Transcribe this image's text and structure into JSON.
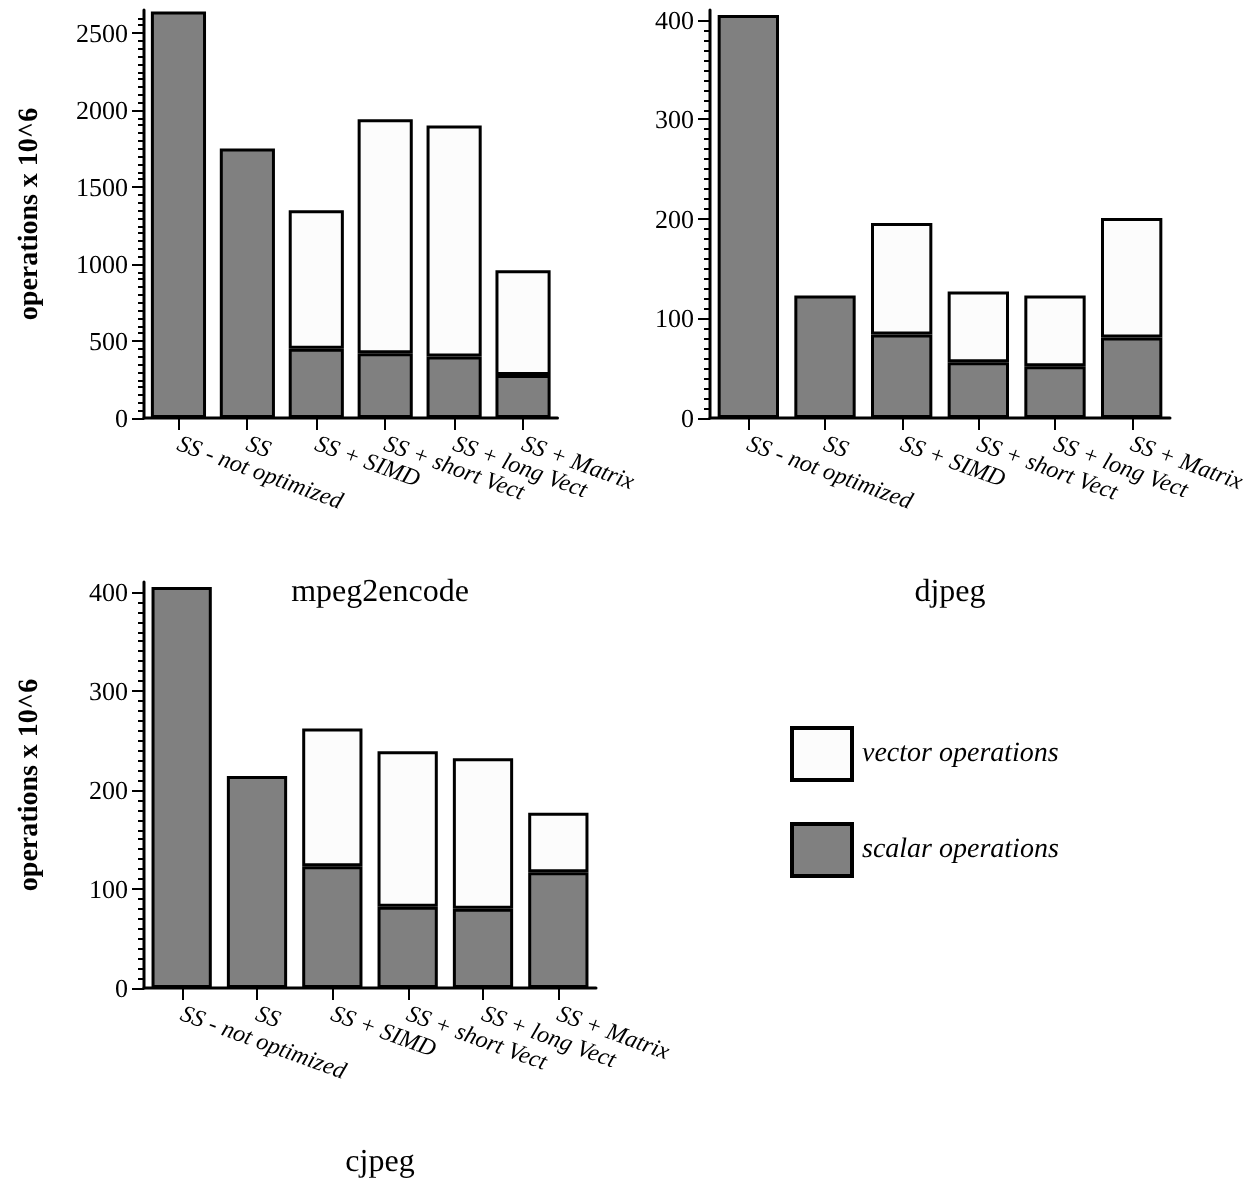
{
  "chart_data": [
    {
      "type": "bar",
      "title": "mpeg2encode",
      "ylabel": "operations x 10^6",
      "stacked": true,
      "legend": false,
      "categories": [
        "SS - not optimized",
        "SS",
        "SS + SIMD",
        "SS + short Vect",
        "SS + long Vect",
        "SS + Matrix"
      ],
      "ylim": [
        0,
        2650
      ],
      "yticks": [
        0,
        500,
        1000,
        1500,
        2000,
        2500
      ],
      "series": [
        {
          "color": "#808080",
          "values": [
            2640,
            1750,
            450,
            420,
            400,
            280
          ]
        },
        {
          "color": "#fcfcfc",
          "values": [
            null,
            null,
            900,
            1520,
            1500,
            680
          ]
        }
      ]
    },
    {
      "type": "bar",
      "title": "djpeg",
      "stacked": true,
      "legend": false,
      "categories": [
        "SS - not optimized",
        "SS",
        "SS + SIMD",
        "SS + short Vect",
        "SS + long Vect",
        "SS + Matrix"
      ],
      "ylim": [
        0,
        410
      ],
      "yticks": [
        0,
        100,
        200,
        300,
        400
      ],
      "series": [
        {
          "color": "#808080",
          "values": [
            405,
            123,
            84,
            56,
            52,
            81
          ]
        },
        {
          "color": "#fcfcfc",
          "values": [
            null,
            null,
            112,
            71,
            71,
            120
          ]
        }
      ]
    },
    {
      "type": "bar",
      "title": "cjpeg",
      "ylabel": "operations x 10^6",
      "stacked": true,
      "legend": "right",
      "categories": [
        "SS - not optimized",
        "SS",
        "SS + SIMD",
        "SS + short Vect",
        "SS + long Vect",
        "SS + Matrix"
      ],
      "ylim": [
        0,
        410
      ],
      "yticks": [
        0,
        100,
        200,
        300,
        400
      ],
      "series": [
        {
          "name": "scalar operations",
          "color": "#808080",
          "values": [
            405,
            214,
            123,
            82,
            80,
            117
          ]
        },
        {
          "name": "vector operations",
          "color": "#fcfcfc",
          "values": [
            null,
            null,
            139,
            157,
            152,
            60
          ]
        }
      ]
    }
  ]
}
